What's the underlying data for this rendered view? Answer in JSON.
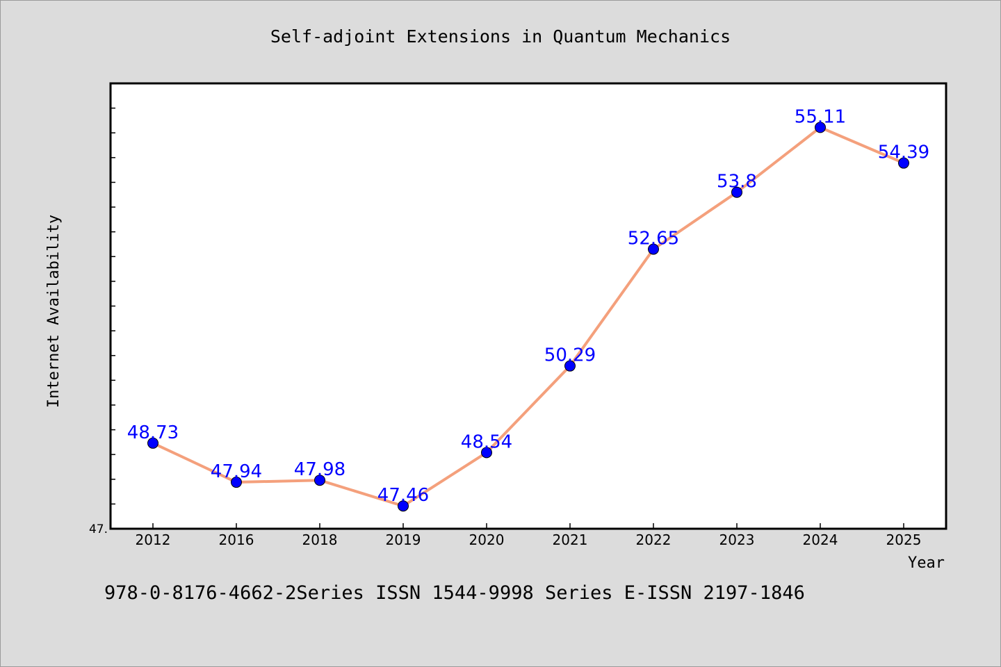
{
  "chart_data": {
    "type": "line",
    "title": "Self-adjoint Extensions in Quantum Mechanics",
    "xlabel": "Year",
    "ylabel": "Internet Availability",
    "categories": [
      "2012",
      "2016",
      "2018",
      "2019",
      "2020",
      "2021",
      "2022",
      "2023",
      "2024",
      "2025"
    ],
    "values": [
      48.73,
      47.94,
      47.98,
      47.46,
      48.54,
      50.29,
      52.65,
      53.8,
      55.11,
      54.39
    ],
    "value_labels": [
      "48.73",
      "47.94",
      "47.98",
      "47.46",
      "48.54",
      "50.29",
      "52.65",
      "53.8",
      "55.11",
      "54.39"
    ],
    "y_tick_label": "47.",
    "ylim": [
      47.0,
      56.0
    ],
    "grid": false,
    "legend": "none",
    "line_color": "#f4a07c",
    "marker_color": "#0000ff",
    "label_color": "#0000ff",
    "background_color": "#dcdcdc",
    "plot_background_color": "#ffffff"
  },
  "footer": {
    "text": "978-0-8176-4662-2Series ISSN 1544-9998 Series E-ISSN 2197-1846"
  }
}
